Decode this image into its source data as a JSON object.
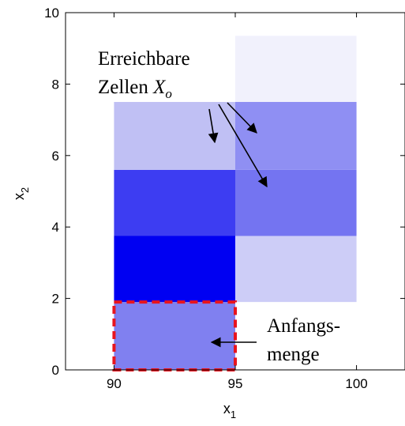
{
  "chart_data": {
    "type": "heatmap",
    "xlabel": "x",
    "xlabel_sub": "1",
    "ylabel": "x",
    "ylabel_sub": "2",
    "xlim": [
      88,
      102
    ],
    "ylim": [
      0,
      10
    ],
    "xticks": [
      90,
      95,
      100
    ],
    "yticks": [
      0,
      2,
      4,
      6,
      8,
      10
    ],
    "grid": false,
    "cells": [
      {
        "x": [
          90,
          95
        ],
        "y": [
          0,
          1.9
        ],
        "color": "#8080f0"
      },
      {
        "x": [
          90,
          95
        ],
        "y": [
          1.9,
          3.75
        ],
        "color": "#0000f2"
      },
      {
        "x": [
          90,
          95
        ],
        "y": [
          3.75,
          5.6
        ],
        "color": "#3d3df2"
      },
      {
        "x": [
          90,
          95
        ],
        "y": [
          5.6,
          7.5
        ],
        "color": "#c0c0f4"
      },
      {
        "x": [
          95,
          100
        ],
        "y": [
          1.9,
          3.75
        ],
        "color": "#cdcdf7"
      },
      {
        "x": [
          95,
          100
        ],
        "y": [
          3.75,
          5.6
        ],
        "color": "#7474f1"
      },
      {
        "x": [
          95,
          100
        ],
        "y": [
          5.6,
          7.5
        ],
        "color": "#8f8ff3"
      },
      {
        "x": [
          95,
          100
        ],
        "y": [
          7.5,
          9.35
        ],
        "color": "#f1f1fc"
      }
    ],
    "initial_set": {
      "x": [
        90,
        95
      ],
      "y": [
        0,
        1.9
      ],
      "border_color": "#e8141e"
    },
    "annotations": {
      "reachable_line1": "Erreichbare",
      "reachable_line2": "Zellen",
      "reachable_symbol": "X",
      "reachable_symbol_sub": "o",
      "initial_line1": "Anfangs-",
      "initial_line2": "menge"
    }
  }
}
